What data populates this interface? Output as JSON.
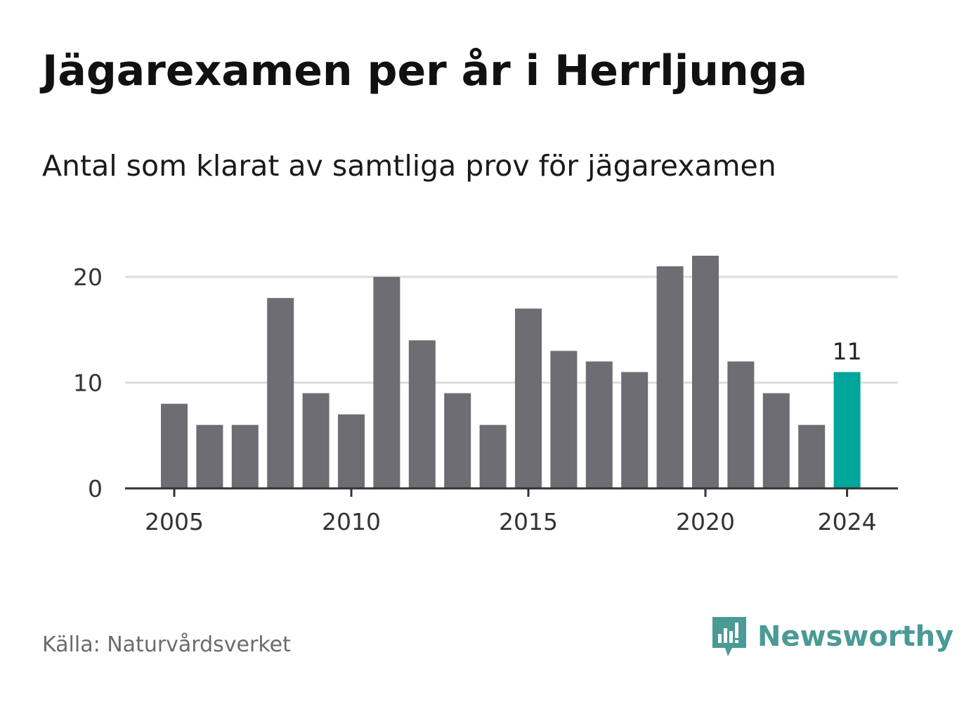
{
  "title": "Jägarexamen per år i Herrljunga",
  "subtitle": "Antal som klarat av samtliga prov för jägarexamen",
  "source": "Källa: Naturvårdsverket",
  "brand": {
    "name": "Newsworthy",
    "icon": "newsworthy-logo-icon",
    "color": "#4a9a95"
  },
  "colors": {
    "bar": "#6e6d73",
    "highlight": "#00a59b",
    "axis": "#333333",
    "grid": "#dddddd"
  },
  "chart_data": {
    "type": "bar",
    "title": "Jägarexamen per år i Herrljunga",
    "subtitle": "Antal som klarat av samtliga prov för jägarexamen",
    "xlabel": "",
    "ylabel": "",
    "categories": [
      2005,
      2006,
      2007,
      2008,
      2009,
      2010,
      2011,
      2012,
      2013,
      2014,
      2015,
      2016,
      2017,
      2018,
      2019,
      2020,
      2021,
      2022,
      2023,
      2024
    ],
    "values": [
      8,
      6,
      6,
      18,
      9,
      7,
      20,
      14,
      9,
      6,
      17,
      13,
      12,
      11,
      21,
      22,
      12,
      9,
      6,
      11
    ],
    "x_ticks": [
      "2005",
      "2010",
      "2015",
      "2020",
      "2024"
    ],
    "y_ticks": [
      "0",
      "10",
      "20"
    ],
    "ylim": [
      0,
      22
    ],
    "grid": true,
    "highlight": {
      "category": 2024,
      "label": "11"
    },
    "legend": "none"
  }
}
